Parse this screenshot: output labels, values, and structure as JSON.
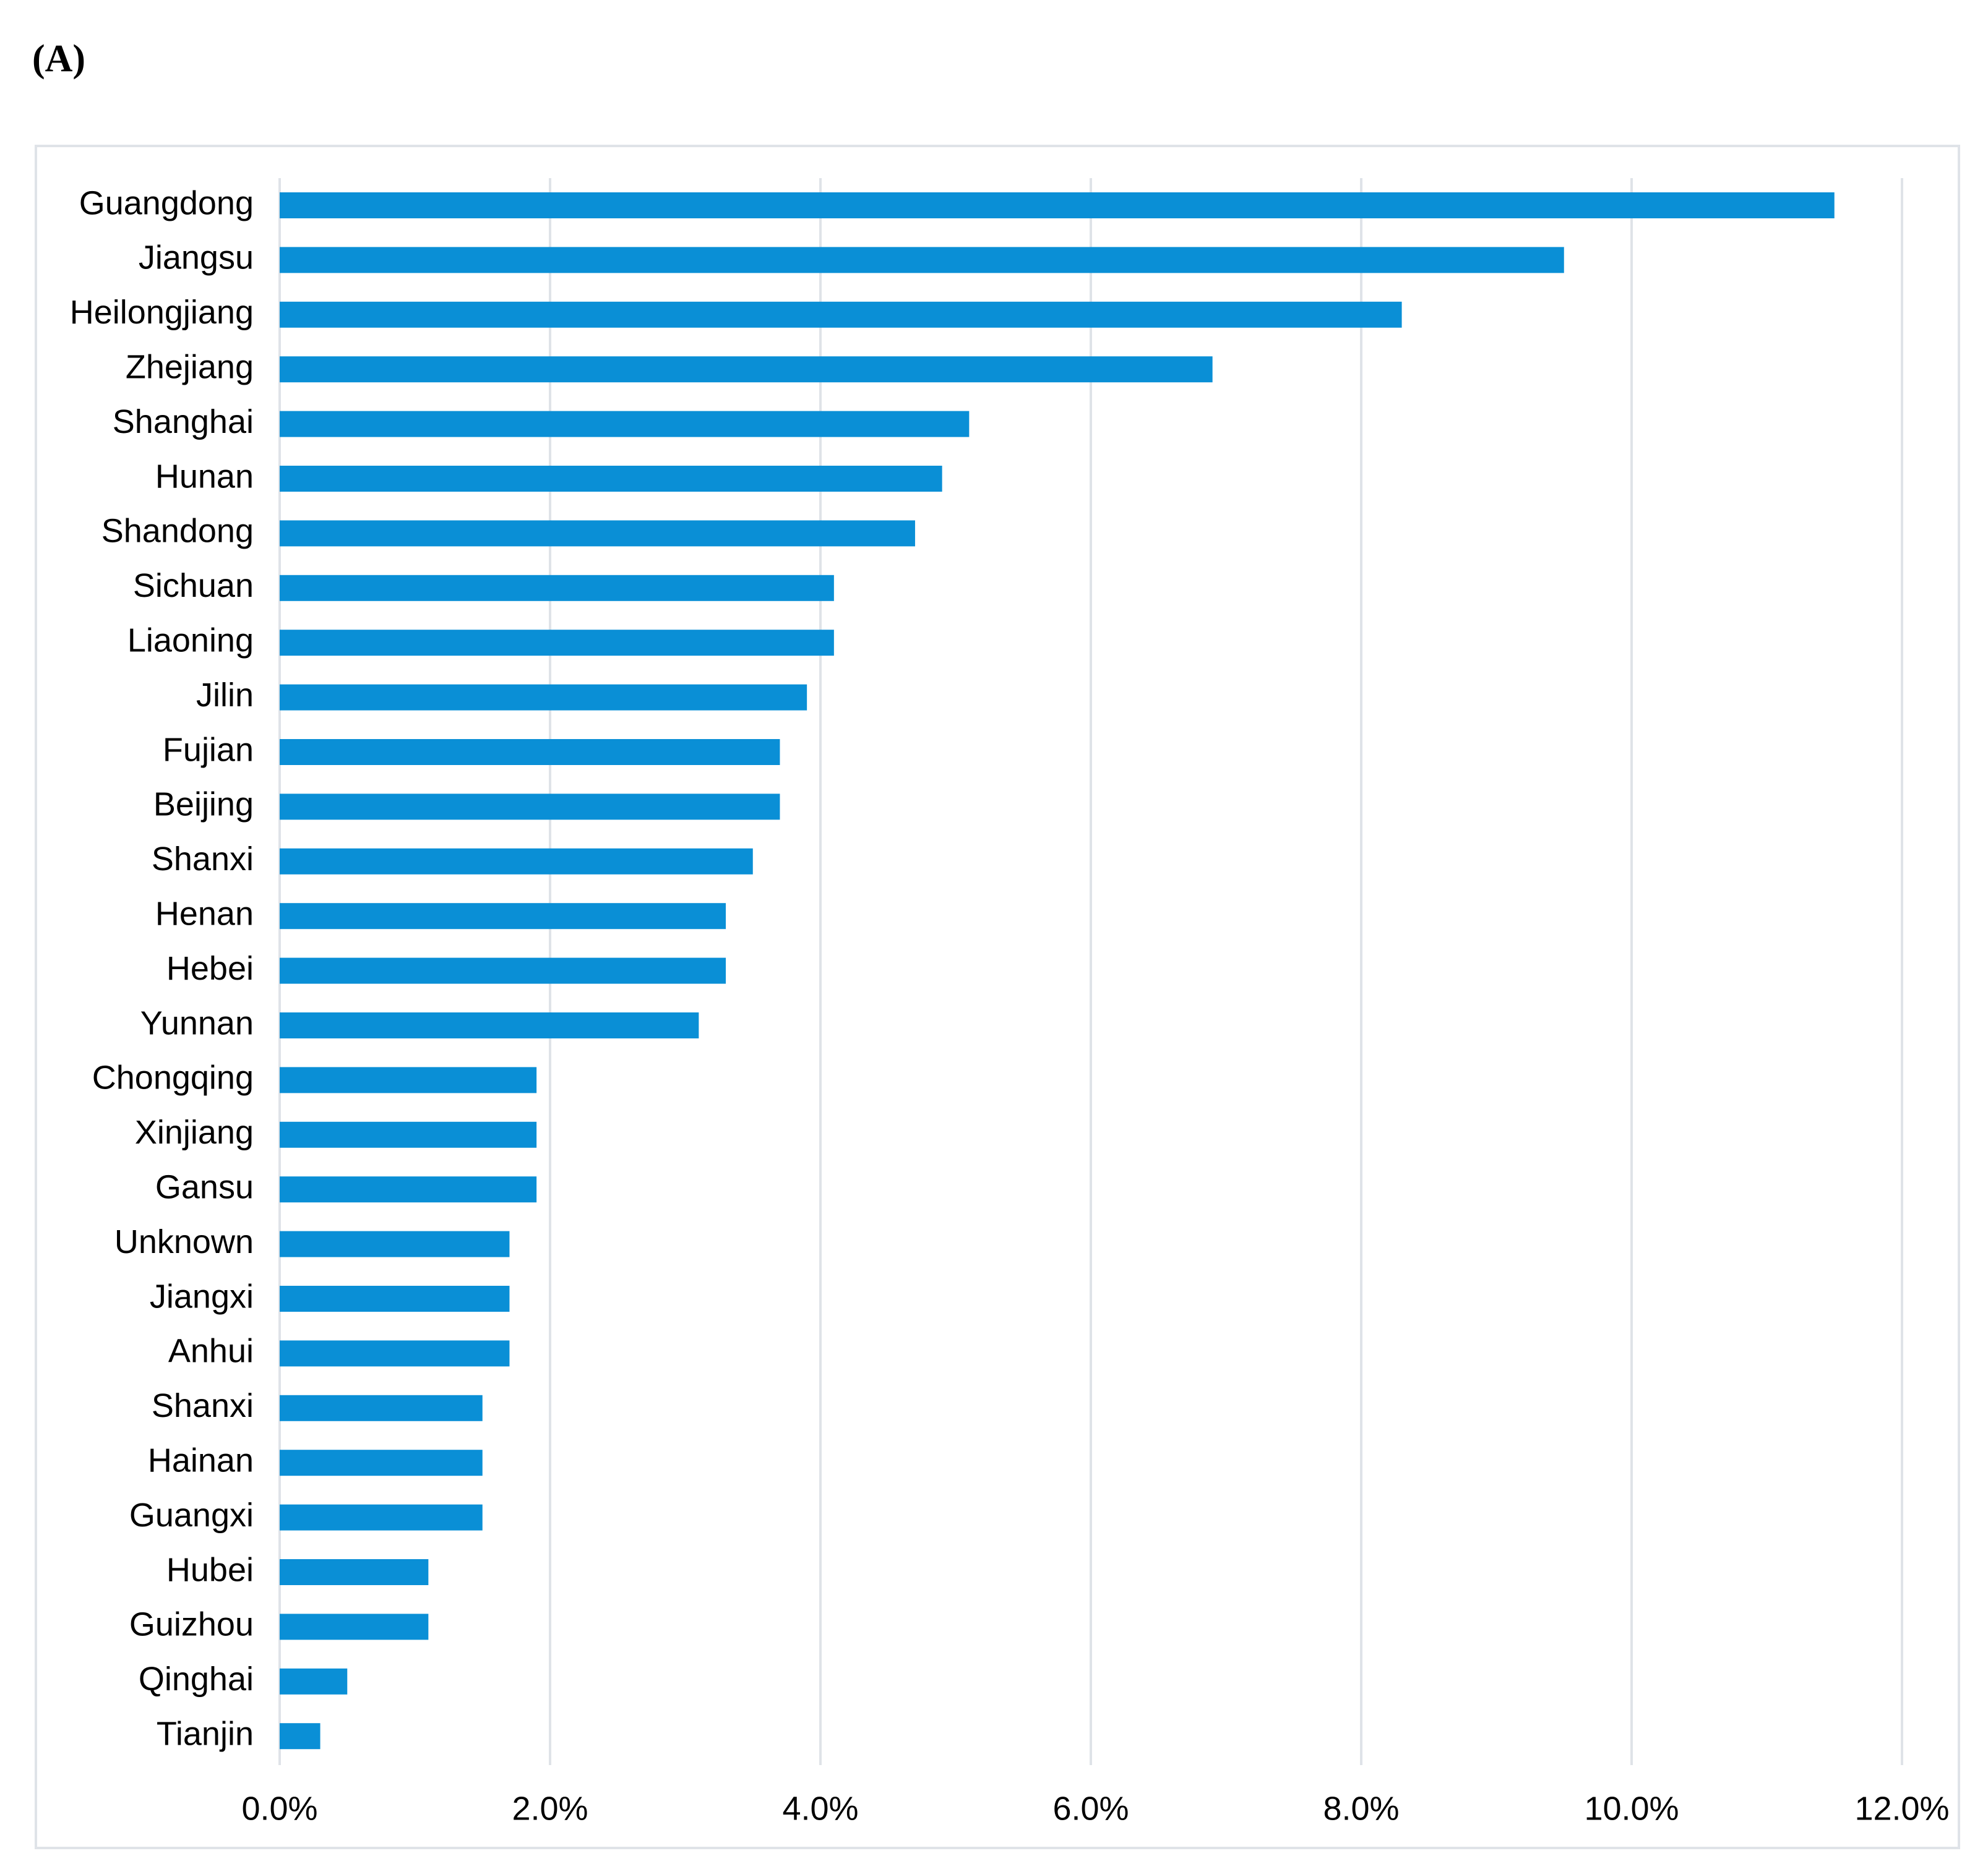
{
  "panel_label": "(A)",
  "chart_data": {
    "type": "bar",
    "orientation": "horizontal",
    "categories": [
      "Guangdong",
      "Jiangsu",
      "Heilongjiang",
      "Zhejiang",
      "Shanghai",
      "Hunan",
      "Shandong",
      "Sichuan",
      "Liaoning",
      "Jilin",
      "Fujian",
      "Beijing",
      "Shanxi",
      "Henan",
      "Hebei",
      "Yunnan",
      "Chongqing",
      "Xinjiang",
      "Gansu",
      "Unknown",
      "Jiangxi",
      "Anhui",
      "Shanxi",
      "Hainan",
      "Guangxi",
      "Hubei",
      "Guizhou",
      "Qinghai",
      "Tianjin"
    ],
    "values": [
      11.5,
      9.5,
      8.3,
      6.9,
      5.1,
      4.9,
      4.7,
      4.1,
      4.1,
      3.9,
      3.7,
      3.7,
      3.5,
      3.3,
      3.3,
      3.1,
      1.9,
      1.9,
      1.9,
      1.7,
      1.7,
      1.7,
      1.5,
      1.5,
      1.5,
      1.1,
      1.1,
      0.5,
      0.3
    ],
    "xticks": [
      "0.0%",
      "2.0%",
      "4.0%",
      "6.0%",
      "8.0%",
      "10.0%",
      "12.0%"
    ],
    "xlim": [
      0,
      12
    ],
    "unit": "%",
    "grid": true,
    "title": "",
    "xlabel": "",
    "ylabel": "",
    "bar_color": "#0a8fd6",
    "grid_color": "#dfe3e8"
  }
}
